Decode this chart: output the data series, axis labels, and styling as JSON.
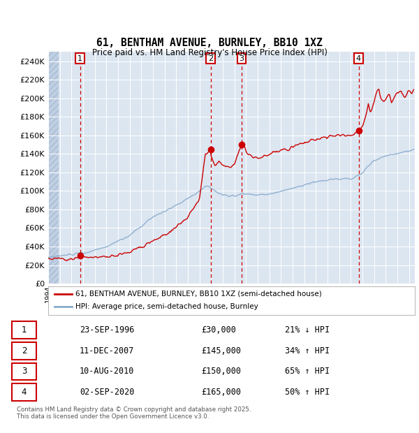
{
  "title": "61, BENTHAM AVENUE, BURNLEY, BB10 1XZ",
  "subtitle": "Price paid vs. HM Land Registry's House Price Index (HPI)",
  "ylim": [
    0,
    250000
  ],
  "yticks": [
    0,
    20000,
    40000,
    60000,
    80000,
    100000,
    120000,
    140000,
    160000,
    180000,
    200000,
    220000,
    240000
  ],
  "xlim_start": 1994.0,
  "xlim_end": 2025.5,
  "bg_color": "#dce6f1",
  "grid_color": "#ffffff",
  "line_red": "#cc0000",
  "line_blue": "#88aacc",
  "transactions": [
    {
      "num": 1,
      "date": "23-SEP-1996",
      "year": 1996.73,
      "price": 30000
    },
    {
      "num": 2,
      "date": "11-DEC-2007",
      "year": 2007.95,
      "price": 145000
    },
    {
      "num": 3,
      "date": "10-AUG-2010",
      "year": 2010.61,
      "price": 150000
    },
    {
      "num": 4,
      "date": "02-SEP-2020",
      "year": 2020.67,
      "price": 165000
    }
  ],
  "legend_entries": [
    "61, BENTHAM AVENUE, BURNLEY, BB10 1XZ (semi-detached house)",
    "HPI: Average price, semi-detached house, Burnley"
  ],
  "footer": "Contains HM Land Registry data © Crown copyright and database right 2025.\nThis data is licensed under the Open Government Licence v3.0.",
  "table_rows": [
    [
      "1",
      "23-SEP-1996",
      "£30,000",
      "21% ↓ HPI"
    ],
    [
      "2",
      "11-DEC-2007",
      "£145,000",
      "34% ↑ HPI"
    ],
    [
      "3",
      "10-AUG-2010",
      "£150,000",
      "65% ↑ HPI"
    ],
    [
      "4",
      "02-SEP-2020",
      "£165,000",
      "50% ↑ HPI"
    ]
  ]
}
